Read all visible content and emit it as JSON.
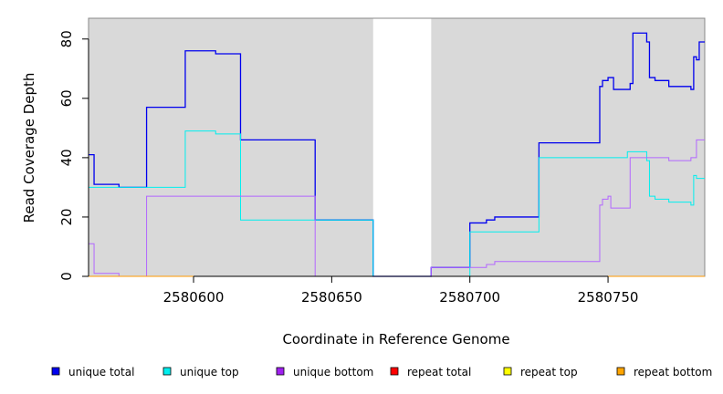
{
  "chart_data": {
    "type": "line",
    "step": true,
    "xlabel": "Coordinate in Reference Genome",
    "ylabel": "Read Coverage Depth",
    "xlim": [
      2580562,
      2580785
    ],
    "ylim": [
      0,
      87
    ],
    "x_ticks": [
      2580600,
      2580650,
      2580700,
      2580750
    ],
    "x_tick_labels": [
      "2580600",
      "2580650",
      "2580700",
      "2580750"
    ],
    "y_ticks": [
      0,
      20,
      40,
      60,
      80
    ],
    "y_tick_labels": [
      "0",
      "20",
      "40",
      "60",
      "80"
    ],
    "panel_color": "#d9d9d9",
    "gap_regions": [
      [
        2580665,
        2580686
      ]
    ],
    "legend_position": "bottom",
    "series": [
      {
        "name": "unique total",
        "color": "#0000ee",
        "points": [
          [
            2580562,
            41
          ],
          [
            2580564,
            31
          ],
          [
            2580573,
            30
          ],
          [
            2580583,
            57
          ],
          [
            2580597,
            76
          ],
          [
            2580608,
            75
          ],
          [
            2580617,
            46
          ],
          [
            2580644,
            19
          ],
          [
            2580665,
            0
          ],
          [
            2580686,
            3
          ],
          [
            2580700,
            18
          ],
          [
            2580706,
            19
          ],
          [
            2580709,
            20
          ],
          [
            2580725,
            45
          ],
          [
            2580747,
            64
          ],
          [
            2580748,
            66
          ],
          [
            2580750,
            67
          ],
          [
            2580752,
            63
          ],
          [
            2580758,
            65
          ],
          [
            2580759,
            82
          ],
          [
            2580764,
            79
          ],
          [
            2580765,
            67
          ],
          [
            2580767,
            66
          ],
          [
            2580772,
            64
          ],
          [
            2580780,
            63
          ],
          [
            2580781,
            74
          ],
          [
            2580782,
            73
          ],
          [
            2580783,
            79
          ],
          [
            2580785,
            79
          ]
        ]
      },
      {
        "name": "unique top",
        "color": "#00eeee",
        "points": [
          [
            2580562,
            30
          ],
          [
            2580583,
            30
          ],
          [
            2580597,
            49
          ],
          [
            2580608,
            48
          ],
          [
            2580617,
            19
          ],
          [
            2580644,
            19
          ],
          [
            2580665,
            0
          ],
          [
            2580686,
            0
          ],
          [
            2580700,
            15
          ],
          [
            2580725,
            40
          ],
          [
            2580757,
            42
          ],
          [
            2580764,
            39
          ],
          [
            2580765,
            27
          ],
          [
            2580767,
            26
          ],
          [
            2580772,
            25
          ],
          [
            2580780,
            24
          ],
          [
            2580781,
            34
          ],
          [
            2580782,
            33
          ],
          [
            2580785,
            33
          ]
        ]
      },
      {
        "name": "unique bottom",
        "color": "#b266ff",
        "points": [
          [
            2580562,
            11
          ],
          [
            2580564,
            1
          ],
          [
            2580573,
            0
          ],
          [
            2580583,
            27
          ],
          [
            2580644,
            0
          ],
          [
            2580665,
            0
          ],
          [
            2580686,
            3
          ],
          [
            2580706,
            4
          ],
          [
            2580709,
            5
          ],
          [
            2580747,
            24
          ],
          [
            2580748,
            26
          ],
          [
            2580750,
            27
          ],
          [
            2580751,
            23
          ],
          [
            2580758,
            40
          ],
          [
            2580772,
            39
          ],
          [
            2580780,
            40
          ],
          [
            2580782,
            46
          ],
          [
            2580785,
            46
          ]
        ]
      },
      {
        "name": "repeat total",
        "color": "#ff0000",
        "points": [
          [
            2580562,
            0
          ],
          [
            2580785,
            0
          ]
        ]
      },
      {
        "name": "repeat top",
        "color": "#ffff00",
        "points": [
          [
            2580562,
            0
          ],
          [
            2580785,
            0
          ]
        ]
      },
      {
        "name": "repeat bottom",
        "color": "#ff9900",
        "points": [
          [
            2580562,
            0
          ],
          [
            2580785,
            0
          ]
        ]
      }
    ]
  },
  "legend": {
    "items": [
      {
        "label": "unique total",
        "color": "#0000ee"
      },
      {
        "label": "unique top",
        "color": "#00eeee"
      },
      {
        "label": "unique bottom",
        "color": "#a020f0"
      },
      {
        "label": "repeat total",
        "color": "#ff0000"
      },
      {
        "label": "repeat top",
        "color": "#ffff00"
      },
      {
        "label": "repeat bottom",
        "color": "#ffa500"
      }
    ]
  }
}
